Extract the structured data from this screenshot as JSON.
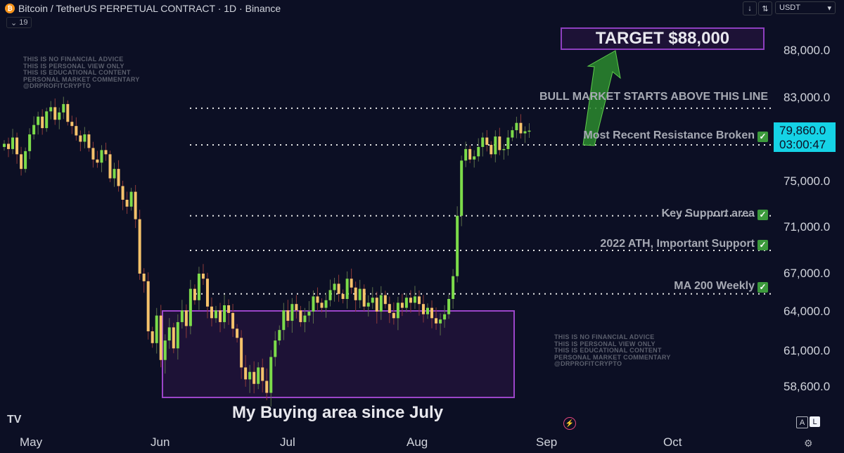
{
  "header": {
    "title": "Bitcoin / TetherUS PERPETUAL CONTRACT · 1D · Binance",
    "indicator_badge": "19",
    "currency": "USDT"
  },
  "disclaimer_text": "THIS IS NO FINANCIAL ADVICE\nTHIS IS PERSONAL VIEW ONLY\nTHIS IS EDUCATIONAL CONTENT\nPERSONAL MARKET COMMENTARY\n@DRPROFITCRYPTO",
  "annotations": {
    "target": "TARGET $88,000",
    "bull_line": "BULL MARKET STARTS ABOVE THIS LINE",
    "resistance": "Most Recent Resistance Broken",
    "key_support": "Key Support area",
    "ath_support": "2022 ATH, Important Support",
    "ma200": "MA 200 Weekly",
    "buying_area": "My Buying area since July",
    "check_glyph": "✓"
  },
  "current_price": {
    "value": "79,860.0",
    "countdown": "03:00:47"
  },
  "colors": {
    "background": "#0c0f24",
    "up_candle": "#7cdb4a",
    "down_candle": "#f5c26b",
    "buy_box_border": "#9b45c9",
    "current_price_tag": "#15d3e6",
    "arrow": "#3fa23f"
  },
  "chart_data": {
    "type": "candlestick",
    "title": "Bitcoin / TetherUS PERPETUAL CONTRACT · 1D · Binance",
    "y_axis_ticks": [
      "88,000.0",
      "83,000.0",
      "75,000.0",
      "71,000.0",
      "67,000.0",
      "64,000.0",
      "61,000.0",
      "58,600.0"
    ],
    "x_axis_ticks": [
      "May",
      "Jun",
      "Jul",
      "Aug",
      "Sep",
      "Oct"
    ],
    "ylim": [
      55600,
      92200
    ],
    "horizontal_levels": [
      {
        "name": "Bull market line",
        "price": 82000
      },
      {
        "name": "Most Recent Resistance Broken",
        "price": 78500
      },
      {
        "name": "Key Support area",
        "price": 72000
      },
      {
        "name": "2022 ATH, Important Support",
        "price": 69000
      },
      {
        "name": "MA 200 Weekly",
        "price": 65400
      }
    ],
    "buying_area": {
      "price_low": 57600,
      "price_high": 64300,
      "from": "Jun 1",
      "to": "Aug 18"
    },
    "target": 88000,
    "closes": [
      78600,
      78100,
      79200,
      77600,
      76200,
      77900,
      79500,
      80400,
      81200,
      80100,
      81700,
      82100,
      80900,
      81600,
      82400,
      80700,
      80300,
      79400,
      78800,
      79500,
      78200,
      77100,
      76800,
      78000,
      77600,
      75300,
      76200,
      74600,
      73400,
      72800,
      74100,
      71700,
      67000,
      66400,
      62500,
      61600,
      63700,
      60400,
      61800,
      62800,
      61200,
      63200,
      64100,
      62900,
      65800,
      64900,
      67000,
      66600,
      64400,
      63500,
      64100,
      63200,
      64500,
      63900,
      62700,
      62000,
      59900,
      59100,
      59600,
      58800,
      59900,
      59000,
      58200,
      60600,
      61800,
      62600,
      64100,
      63300,
      64600,
      64100,
      63200,
      63700,
      64000,
      65200,
      64700,
      64300,
      64900,
      65700,
      66200,
      65400,
      65000,
      66600,
      65900,
      64900,
      65800,
      64400,
      64700,
      65100,
      64000,
      65300,
      64600,
      63900,
      63500,
      64700,
      64300,
      65100,
      64700,
      65200,
      64600,
      63800,
      64300,
      63500,
      63100,
      63400,
      63800,
      65000,
      66800,
      72000,
      77000,
      78100,
      77100,
      77400,
      78300,
      79200,
      78500,
      77600,
      79300,
      78000,
      78100,
      79200,
      79900,
      80600,
      79600,
      79800,
      79860
    ]
  },
  "axis_labels": {
    "x": [
      "May",
      "Jun",
      "Jul",
      "Aug",
      "Sep",
      "Oct"
    ],
    "y": [
      "88,000.0",
      "83,000.0",
      "75,000.0",
      "71,000.0",
      "67,000.0",
      "64,000.0",
      "61,000.0",
      "58,600.0"
    ]
  },
  "footer": {
    "tv_logo": "TV",
    "scale_auto": "A",
    "scale_log": "L",
    "settings_glyph": "⚙",
    "flash_glyph": "⚡"
  },
  "toolbar": {
    "download_glyph": "↓",
    "sort_glyph": "⇅",
    "dropdown_glyph": "▾",
    "indicator_glyph": "⌄"
  }
}
